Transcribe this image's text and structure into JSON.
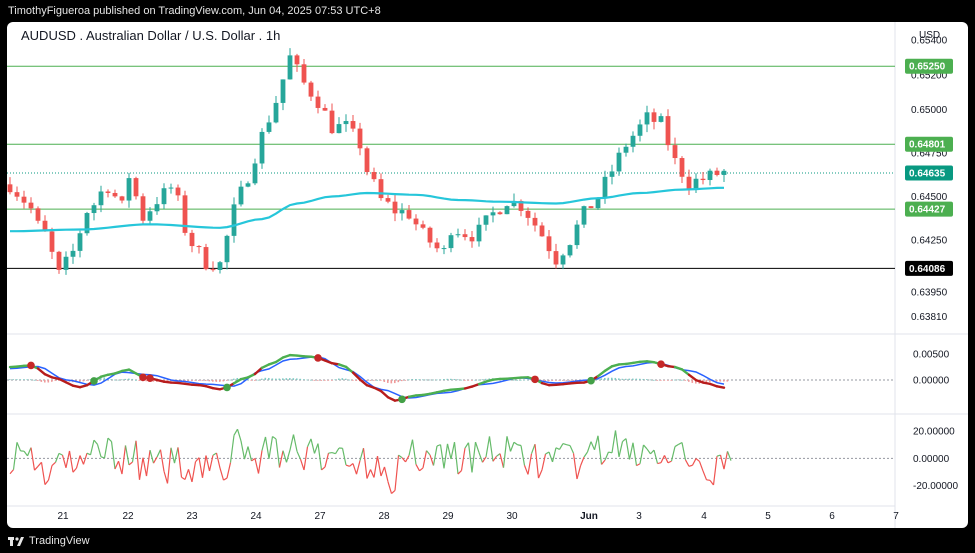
{
  "header": {
    "published_text": "TimothyFigueroa published on TradingView.com, Jun 04, 2025 07:53 UTC+8"
  },
  "footer": {
    "brand": "TradingView"
  },
  "chart_data": {
    "type": "candlestick",
    "title": "AUDUSD . Australian Dollar / U.S. Dollar . 1h",
    "currency": "USD",
    "x_ticks": [
      "21",
      "22",
      "23",
      "24",
      "27",
      "28",
      "29",
      "30",
      "Jun",
      "3",
      "4",
      "5",
      "6",
      "7"
    ],
    "price_ticks": [
      "0.65400",
      "0.65200",
      "0.65000",
      "0.64750",
      "0.64500",
      "0.64250",
      "0.63950",
      "0.63810"
    ],
    "ylim": [
      0.6372,
      0.6547
    ],
    "horizontal_levels": [
      {
        "value": 0.6525,
        "label": "0.65250",
        "color": "#4caf50"
      },
      {
        "value": 0.64801,
        "label": "0.64801",
        "color": "#4caf50"
      },
      {
        "value": 0.64427,
        "label": "0.64427",
        "color": "#4caf50"
      },
      {
        "value": 0.64086,
        "label": "0.64086",
        "color": "#000000"
      }
    ],
    "last_price": {
      "value": 0.64635,
      "label": "0.64635",
      "color": "#089981"
    },
    "colors": {
      "up": "#26a69a",
      "down": "#ef5350",
      "ma": "#26c6da",
      "ma_fast": "#4caf50",
      "ma_slow": "#2962ff",
      "ma_red": "#b71c1c"
    },
    "close_anchors": [
      [
        0,
        0.6457
      ],
      [
        2,
        0.6448
      ],
      [
        5,
        0.6428
      ],
      [
        7,
        0.6405
      ],
      [
        9,
        0.6418
      ],
      [
        11,
        0.6442
      ],
      [
        14,
        0.6456
      ],
      [
        16,
        0.6444
      ],
      [
        17,
        0.6462
      ],
      [
        19,
        0.6438
      ],
      [
        21,
        0.6448
      ],
      [
        23,
        0.6455
      ],
      [
        26,
        0.6423
      ],
      [
        28,
        0.6412
      ],
      [
        30,
        0.6411
      ],
      [
        32,
        0.6442
      ],
      [
        34,
        0.6462
      ],
      [
        36,
        0.6485
      ],
      [
        38,
        0.6505
      ],
      [
        40,
        0.653
      ],
      [
        42,
        0.6515
      ],
      [
        44,
        0.6505
      ],
      [
        46,
        0.649
      ],
      [
        48,
        0.649
      ],
      [
        50,
        0.648
      ],
      [
        51,
        0.6465
      ],
      [
        53,
        0.6448
      ],
      [
        55,
        0.6442
      ],
      [
        57,
        0.644
      ],
      [
        59,
        0.6428
      ],
      [
        61,
        0.642
      ],
      [
        62,
        0.6418
      ],
      [
        63,
        0.6432
      ],
      [
        66,
        0.6428
      ],
      [
        67,
        0.643
      ],
      [
        69,
        0.644
      ],
      [
        71,
        0.6448
      ],
      [
        73,
        0.6445
      ],
      [
        74,
        0.644
      ],
      [
        76,
        0.6428
      ],
      [
        78,
        0.6414
      ],
      [
        80,
        0.6425
      ],
      [
        82,
        0.644
      ],
      [
        84,
        0.645
      ],
      [
        86,
        0.6465
      ],
      [
        88,
        0.648
      ],
      [
        89,
        0.6485
      ],
      [
        91,
        0.6495
      ],
      [
        93,
        0.6492
      ],
      [
        95,
        0.647
      ],
      [
        97,
        0.6458
      ],
      [
        99,
        0.646
      ],
      [
        101,
        0.6463
      ],
      [
        102,
        0.6464
      ]
    ],
    "ma_anchors": [
      [
        0,
        0.643
      ],
      [
        10,
        0.6431
      ],
      [
        20,
        0.6434
      ],
      [
        30,
        0.6432
      ],
      [
        36,
        0.6437
      ],
      [
        41,
        0.6446
      ],
      [
        46,
        0.645
      ],
      [
        51,
        0.6452
      ],
      [
        58,
        0.6451
      ],
      [
        64,
        0.6448
      ],
      [
        70,
        0.6447
      ],
      [
        78,
        0.6446
      ],
      [
        84,
        0.6449
      ],
      [
        90,
        0.6452
      ],
      [
        96,
        0.6454
      ],
      [
        102,
        0.6455
      ]
    ],
    "oscillator1": {
      "ticks": [
        "0.00500",
        "0.00000"
      ],
      "ylim": [
        -0.0062,
        0.0085
      ],
      "fast_anchors": [
        [
          0,
          0.0025
        ],
        [
          3,
          0.0028
        ],
        [
          6,
          0.0005
        ],
        [
          10,
          -0.0014
        ],
        [
          14,
          0.001
        ],
        [
          17,
          0.002
        ],
        [
          19,
          0.0005
        ],
        [
          23,
          -0.0005
        ],
        [
          27,
          -0.001
        ],
        [
          30,
          -0.0018
        ],
        [
          34,
          0.0005
        ],
        [
          37,
          0.003
        ],
        [
          40,
          0.0048
        ],
        [
          43,
          0.0045
        ],
        [
          47,
          0.003
        ],
        [
          52,
          -0.0015
        ],
        [
          55,
          -0.004
        ],
        [
          58,
          -0.003
        ],
        [
          64,
          -0.0018
        ],
        [
          70,
          0.0002
        ],
        [
          74,
          0.0005
        ],
        [
          77,
          -0.001
        ],
        [
          82,
          -0.0005
        ],
        [
          87,
          0.003
        ],
        [
          91,
          0.0036
        ],
        [
          95,
          0.0025
        ],
        [
          99,
          -0.0005
        ],
        [
          102,
          -0.0015
        ]
      ],
      "slow_anchors": [
        [
          0,
          0.0022
        ],
        [
          4,
          0.0026
        ],
        [
          8,
          0.0
        ],
        [
          12,
          -0.001
        ],
        [
          16,
          0.0015
        ],
        [
          20,
          0.001
        ],
        [
          24,
          -0.0002
        ],
        [
          28,
          -0.0008
        ],
        [
          32,
          -0.0012
        ],
        [
          36,
          0.0018
        ],
        [
          40,
          0.004
        ],
        [
          44,
          0.0045
        ],
        [
          48,
          0.002
        ],
        [
          53,
          -0.0018
        ],
        [
          57,
          -0.0035
        ],
        [
          62,
          -0.0025
        ],
        [
          68,
          -0.0008
        ],
        [
          73,
          0.0004
        ],
        [
          78,
          -0.0006
        ],
        [
          83,
          0.0
        ],
        [
          88,
          0.0026
        ],
        [
          92,
          0.0034
        ],
        [
          97,
          0.0018
        ],
        [
          102,
          -0.0008
        ]
      ],
      "cross_down": [
        3,
        19,
        20,
        44,
        75,
        93
      ],
      "cross_up": [
        12,
        31,
        56,
        83
      ]
    },
    "oscillator2": {
      "ticks": [
        "20.00000",
        "0.00000",
        "-20.00000"
      ],
      "ylim": [
        -32,
        31
      ]
    }
  }
}
